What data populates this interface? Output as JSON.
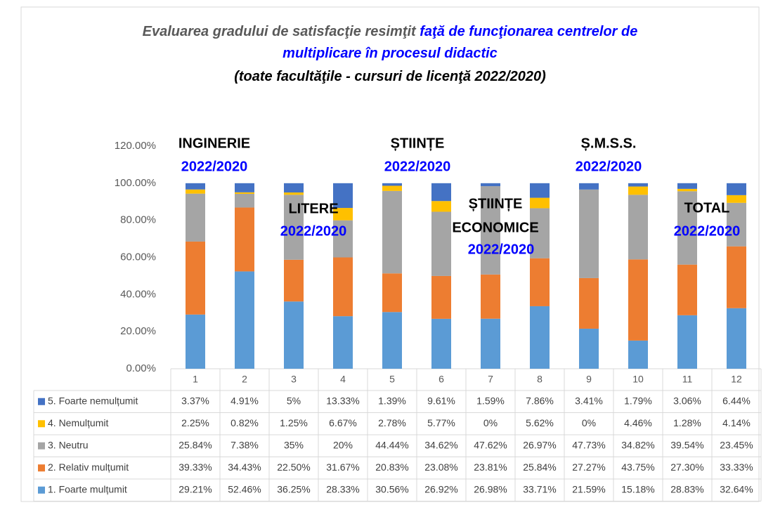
{
  "chart_data": {
    "type": "stacked_bar",
    "title": [
      [
        {
          "text": "Evaluarea gradului de satisfacţie resimţit ",
          "color": "#595959"
        },
        {
          "text": "faţă de funcţionarea centrelor de",
          "color": "#0000ff"
        }
      ],
      [
        {
          "text": "multiplicare în procesul didactic",
          "color": "#0000ff"
        }
      ],
      [
        {
          "text": "(toate facultăţile - cursuri de licenţă 2022/2020)",
          "color": "#000000"
        }
      ]
    ],
    "categories": [
      "1",
      "2",
      "3",
      "4",
      "5",
      "6",
      "7",
      "8",
      "9",
      "10",
      "11",
      "12"
    ],
    "ylim": [
      0,
      120
    ],
    "yticks": [
      {
        "value": 0,
        "label": "0.00%"
      },
      {
        "value": 20,
        "label": "20.00%"
      },
      {
        "value": 40,
        "label": "40.00%"
      },
      {
        "value": 60,
        "label": "60.00%"
      },
      {
        "value": 80,
        "label": "80.00%"
      },
      {
        "value": 100,
        "label": "100.00%"
      },
      {
        "value": 120,
        "label": "120.00%"
      }
    ],
    "series": [
      {
        "name": "1. Foarte mulțumit",
        "color": "#5b9bd5",
        "values": [
          29.21,
          52.46,
          36.25,
          28.33,
          30.56,
          26.92,
          26.98,
          33.71,
          21.59,
          15.18,
          28.83,
          32.64
        ],
        "value_labels": [
          "29.21%",
          "52.46%",
          "36.25%",
          "28.33%",
          "30.56%",
          "26.92%",
          "26.98%",
          "33.71%",
          "21.59%",
          "15.18%",
          "28.83%",
          "32.64%"
        ]
      },
      {
        "name": "2. Relativ mulțumit",
        "color": "#ed7d31",
        "values": [
          39.33,
          34.43,
          22.5,
          31.67,
          20.83,
          23.08,
          23.81,
          25.84,
          27.27,
          43.75,
          27.3,
          33.33
        ],
        "value_labels": [
          "39.33%",
          "34.43%",
          "22.50%",
          "31.67%",
          "20.83%",
          "23.08%",
          "23.81%",
          "25.84%",
          "27.27%",
          "43.75%",
          "27.30%",
          "33.33%"
        ]
      },
      {
        "name": "3. Neutru",
        "color": "#a5a5a5",
        "values": [
          25.84,
          7.38,
          35,
          20,
          44.44,
          34.62,
          47.62,
          26.97,
          47.73,
          34.82,
          39.54,
          23.45
        ],
        "value_labels": [
          "25.84%",
          "7.38%",
          "35%",
          "20%",
          "44.44%",
          "34.62%",
          "47.62%",
          "26.97%",
          "47.73%",
          "34.82%",
          "39.54%",
          "23.45%"
        ]
      },
      {
        "name": "4. Nemulțumit",
        "color": "#ffc000",
        "values": [
          2.25,
          0.82,
          1.25,
          6.67,
          2.78,
          5.77,
          0,
          5.62,
          0,
          4.46,
          1.28,
          4.14
        ],
        "value_labels": [
          "2.25%",
          "0.82%",
          "1.25%",
          "6.67%",
          "2.78%",
          "5.77%",
          "0%",
          "5.62%",
          "0%",
          "4.46%",
          "1.28%",
          "4.14%"
        ]
      },
      {
        "name": "5. Foarte nemulțumit",
        "color": "#4472c4",
        "values": [
          3.37,
          4.91,
          5,
          13.33,
          1.39,
          9.61,
          1.59,
          7.86,
          3.41,
          1.79,
          3.06,
          6.44
        ],
        "value_labels": [
          "3.37%",
          "4.91%",
          "5%",
          "13.33%",
          "1.39%",
          "9.61%",
          "1.59%",
          "7.86%",
          "3.41%",
          "1.79%",
          "3.06%",
          "6.44%"
        ]
      }
    ],
    "annotations": [
      {
        "text": "INGINERIE",
        "color": "#000000"
      },
      {
        "text": "2022/2020",
        "color": "#0000ff"
      },
      {
        "text": "LITERE",
        "color": "#000000"
      },
      {
        "text": "2022/2020",
        "color": "#0000ff"
      },
      {
        "text": "ȘTIINȚE",
        "color": "#000000"
      },
      {
        "text": "2022/2020",
        "color": "#0000ff"
      },
      {
        "text": "ȘTIINȚE",
        "color": "#000000"
      },
      {
        "text": "ECONOMICE",
        "color": "#000000"
      },
      {
        "text": "2022/2020",
        "color": "#0000ff"
      },
      {
        "text": "Ș.M.S.S.",
        "color": "#000000"
      },
      {
        "text": "2022/2020",
        "color": "#0000ff"
      },
      {
        "text": "TOTAL",
        "color": "#000000"
      },
      {
        "text": "2022/2020",
        "color": "#0000ff"
      }
    ]
  }
}
